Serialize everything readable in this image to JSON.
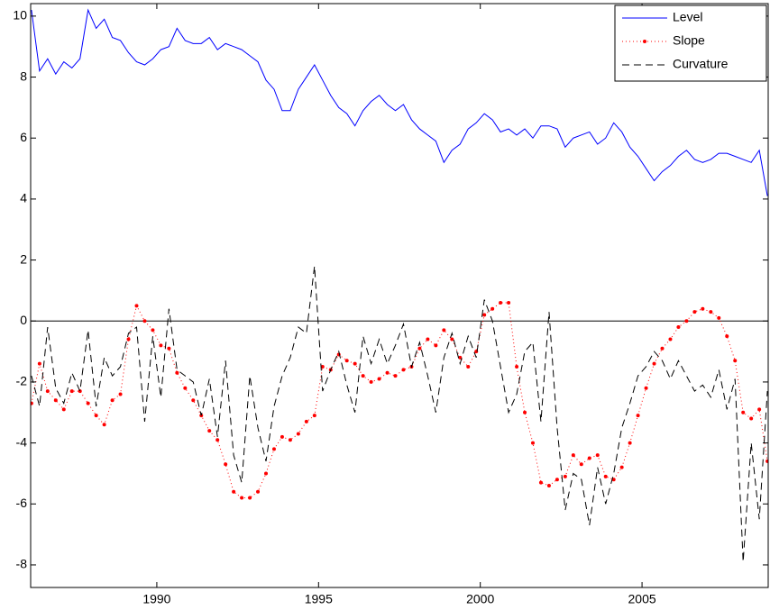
{
  "chart_data": {
    "type": "line",
    "x": [
      1986.125,
      1986.375,
      1986.625,
      1986.875,
      1987.125,
      1987.375,
      1987.625,
      1987.875,
      1988.125,
      1988.375,
      1988.625,
      1988.875,
      1989.125,
      1989.375,
      1989.625,
      1989.875,
      1990.125,
      1990.375,
      1990.625,
      1990.875,
      1991.125,
      1991.375,
      1991.625,
      1991.875,
      1992.125,
      1992.375,
      1992.625,
      1992.875,
      1993.125,
      1993.375,
      1993.625,
      1993.875,
      1994.125,
      1994.375,
      1994.625,
      1994.875,
      1995.125,
      1995.375,
      1995.625,
      1995.875,
      1996.125,
      1996.375,
      1996.625,
      1996.875,
      1997.125,
      1997.375,
      1997.625,
      1997.875,
      1998.125,
      1998.375,
      1998.625,
      1998.875,
      1999.125,
      1999.375,
      1999.625,
      1999.875,
      2000.125,
      2000.375,
      2000.625,
      2000.875,
      2001.125,
      2001.375,
      2001.625,
      2001.875,
      2002.125,
      2002.375,
      2002.625,
      2002.875,
      2003.125,
      2003.375,
      2003.625,
      2003.875,
      2004.125,
      2004.375,
      2004.625,
      2004.875,
      2005.125,
      2005.375,
      2005.625,
      2005.875,
      2006.125,
      2006.375,
      2006.625,
      2006.875,
      2007.125,
      2007.375,
      2007.625,
      2007.875,
      2008.125,
      2008.375,
      2008.625,
      2008.875
    ],
    "series": [
      {
        "name": "Level",
        "color": "#0000ff",
        "linestyle": "solid",
        "marker": false,
        "values": [
          10.2,
          8.2,
          8.6,
          8.1,
          8.5,
          8.3,
          8.6,
          10.2,
          9.6,
          9.9,
          9.3,
          9.2,
          8.8,
          8.5,
          8.4,
          8.6,
          8.9,
          9.0,
          9.6,
          9.2,
          9.1,
          9.1,
          9.3,
          8.9,
          9.1,
          9.0,
          8.9,
          8.7,
          8.5,
          7.9,
          7.6,
          6.9,
          6.9,
          7.6,
          8.0,
          8.4,
          7.9,
          7.4,
          7.0,
          6.8,
          6.4,
          6.9,
          7.2,
          7.4,
          7.1,
          6.9,
          7.1,
          6.6,
          6.3,
          6.1,
          5.9,
          5.2,
          5.6,
          5.8,
          6.3,
          6.5,
          6.8,
          6.6,
          6.2,
          6.3,
          6.1,
          6.3,
          6.0,
          6.4,
          6.4,
          6.3,
          5.7,
          6.0,
          6.1,
          6.2,
          5.8,
          6.0,
          6.5,
          6.2,
          5.7,
          5.4,
          5.0,
          4.6,
          4.9,
          5.1,
          5.4,
          5.6,
          5.3,
          5.2,
          5.3,
          5.5,
          5.5,
          5.4,
          5.3,
          5.2,
          5.6,
          4.1
        ]
      },
      {
        "name": "Slope",
        "color": "#ff0000",
        "linestyle": "dotted",
        "marker": true,
        "values": [
          -2.7,
          -1.4,
          -2.3,
          -2.6,
          -2.9,
          -2.3,
          -2.3,
          -2.7,
          -3.1,
          -3.4,
          -2.6,
          -2.4,
          -0.6,
          0.5,
          0.0,
          -0.3,
          -0.8,
          -0.9,
          -1.7,
          -2.2,
          -2.6,
          -3.1,
          -3.6,
          -3.9,
          -4.7,
          -5.6,
          -5.8,
          -5.8,
          -5.6,
          -5.0,
          -4.2,
          -3.8,
          -3.9,
          -3.7,
          -3.3,
          -3.1,
          -1.5,
          -1.6,
          -1.1,
          -1.3,
          -1.4,
          -1.8,
          -2.0,
          -1.9,
          -1.7,
          -1.8,
          -1.6,
          -1.5,
          -0.9,
          -0.6,
          -0.8,
          -0.3,
          -0.6,
          -1.2,
          -1.5,
          -1.0,
          0.2,
          0.4,
          0.6,
          0.6,
          -1.5,
          -3.0,
          -4.0,
          -5.3,
          -5.4,
          -5.2,
          -5.1,
          -4.4,
          -4.7,
          -4.5,
          -4.4,
          -5.1,
          -5.2,
          -4.8,
          -4.0,
          -3.1,
          -2.2,
          -1.4,
          -0.9,
          -0.6,
          -0.2,
          0.0,
          0.3,
          0.4,
          0.3,
          0.1,
          -0.5,
          -1.3,
          -3.0,
          -3.2,
          -2.9,
          -4.6
        ]
      },
      {
        "name": "Curvature",
        "color": "#000000",
        "linestyle": "dashed",
        "marker": false,
        "values": [
          -1.8,
          -2.8,
          -0.2,
          -2.2,
          -2.7,
          -1.7,
          -2.3,
          -0.3,
          -2.8,
          -1.2,
          -1.8,
          -1.5,
          -0.4,
          -0.2,
          -3.3,
          -0.5,
          -2.5,
          0.4,
          -1.6,
          -1.8,
          -2.0,
          -3.1,
          -1.9,
          -3.8,
          -1.3,
          -4.4,
          -5.3,
          -1.8,
          -3.5,
          -4.6,
          -2.8,
          -1.8,
          -1.2,
          -0.2,
          -0.4,
          1.8,
          -2.3,
          -1.6,
          -1.0,
          -2.1,
          -3.0,
          -0.5,
          -1.4,
          -0.6,
          -1.4,
          -0.8,
          -0.1,
          -1.5,
          -0.7,
          -1.8,
          -3.0,
          -1.2,
          -0.4,
          -1.4,
          -0.5,
          -1.2,
          0.7,
          0.0,
          -1.5,
          -3.0,
          -2.4,
          -1.0,
          -0.7,
          -3.3,
          0.3,
          -3.5,
          -6.2,
          -5.0,
          -5.2,
          -6.7,
          -4.8,
          -6.0,
          -5.0,
          -3.5,
          -2.7,
          -1.8,
          -1.5,
          -1.0,
          -1.3,
          -1.9,
          -1.3,
          -1.8,
          -2.3,
          -2.1,
          -2.5,
          -1.6,
          -2.9,
          -1.9,
          -7.9,
          -4.0,
          -6.5,
          -2.3
        ]
      }
    ],
    "xlim": [
      1986.1,
      2008.9
    ],
    "xticks": [
      1990,
      1995,
      2000,
      2005
    ],
    "ylim": [
      -8.74,
      10.41
    ],
    "yticks": [
      -8,
      -6,
      -4,
      -2,
      0,
      2,
      4,
      6,
      8,
      10
    ],
    "hline": 0,
    "grid": false,
    "legend": "top-right"
  }
}
